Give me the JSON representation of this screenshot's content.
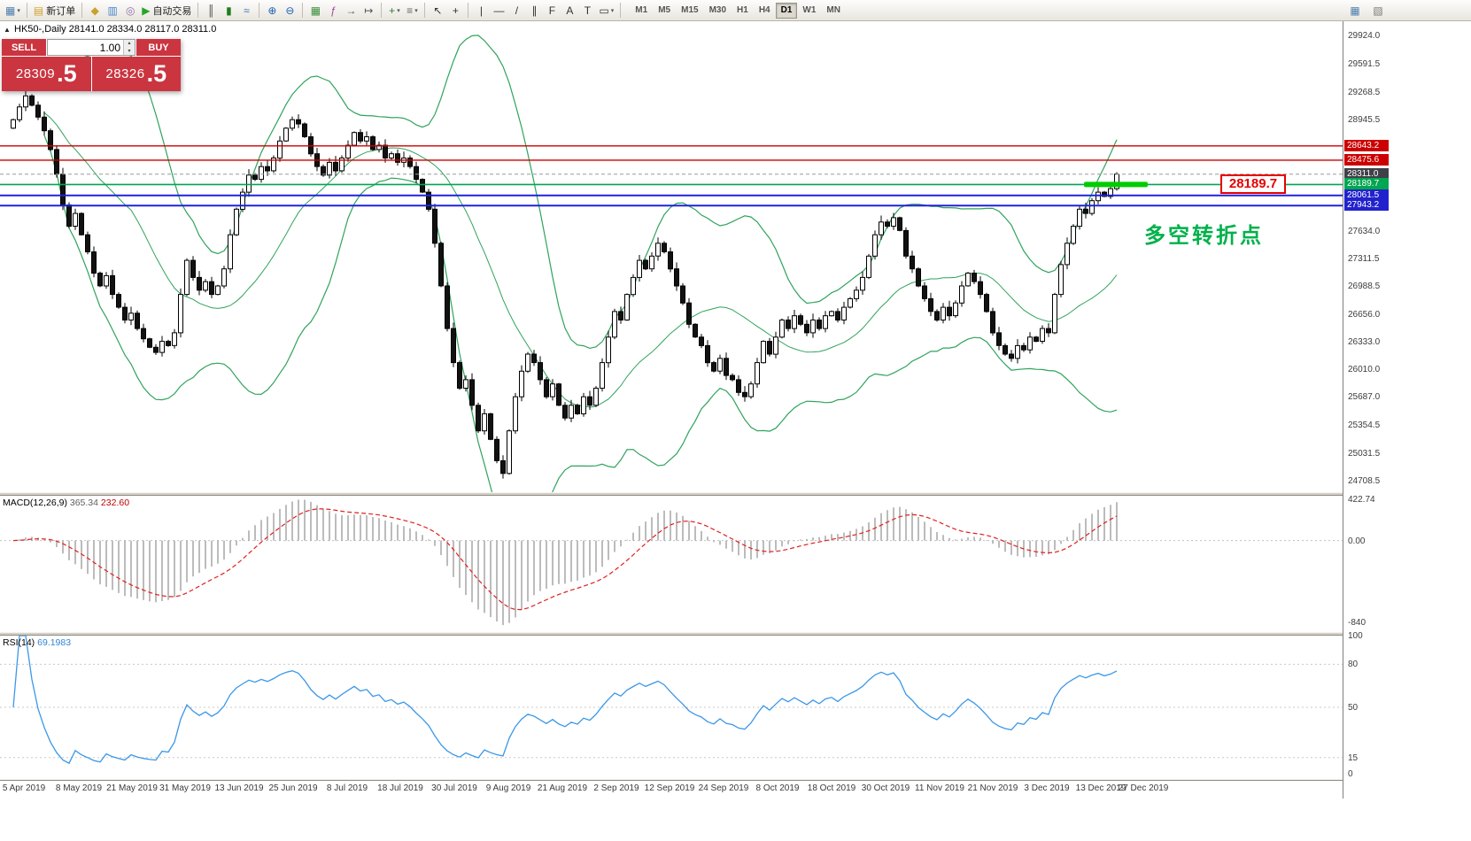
{
  "toolbar": {
    "groups": [
      {
        "items": [
          {
            "kind": "icon",
            "name": "charts-menu-icon",
            "glyph": "▦",
            "color": "#4f7fae",
            "arrow": true
          }
        ]
      },
      {
        "items": [
          {
            "kind": "labeled",
            "name": "new-order-button",
            "label": "新订单",
            "glyph": "▤",
            "color": "#d0a22c"
          }
        ]
      },
      {
        "items": [
          {
            "kind": "icon",
            "name": "metaeditor-icon",
            "glyph": "◆",
            "color": "#c9a227"
          },
          {
            "kind": "icon",
            "name": "market-watch-icon",
            "glyph": "▥",
            "color": "#4a86c8"
          },
          {
            "kind": "icon",
            "name": "navigator-icon",
            "glyph": "◎",
            "color": "#8a6fae"
          },
          {
            "kind": "labeled",
            "name": "autotrading-button",
            "label": "自动交易",
            "glyph": "▶",
            "color": "#28a428"
          }
        ]
      },
      {
        "items": [
          {
            "kind": "icon",
            "name": "bar-chart-icon",
            "glyph": "║",
            "color": "#444444"
          },
          {
            "kind": "icon",
            "name": "candlestick-chart-icon",
            "glyph": "▮",
            "color": "#1c7c1c"
          },
          {
            "kind": "icon",
            "name": "line-chart-icon",
            "glyph": "≈",
            "color": "#2e6fb0"
          }
        ]
      },
      {
        "items": [
          {
            "kind": "icon",
            "name": "zoom-in-icon",
            "glyph": "⊕",
            "color": "#1a5fae"
          },
          {
            "kind": "icon",
            "name": "zoom-out-icon",
            "glyph": "⊖",
            "color": "#1a5fae"
          }
        ]
      },
      {
        "items": [
          {
            "kind": "icon",
            "name": "tile-windows-icon",
            "glyph": "▦",
            "color": "#3f8f3f"
          },
          {
            "kind": "icon",
            "name": "indicators-icon",
            "glyph": "ƒ",
            "color": "#a04a9e"
          },
          {
            "kind": "icon",
            "name": "auto-scroll-icon",
            "glyph": "→",
            "color": "#555555"
          },
          {
            "kind": "icon",
            "name": "chart-shift-icon",
            "glyph": "↦",
            "color": "#555555"
          }
        ]
      },
      {
        "items": [
          {
            "kind": "icon",
            "name": "new-chart-icon",
            "glyph": "+",
            "color": "#2f7f2f",
            "arrow": true
          },
          {
            "kind": "icon",
            "name": "profiles-icon",
            "glyph": "≡",
            "color": "#666666",
            "arrow": true
          }
        ]
      },
      {
        "items": [
          {
            "kind": "icon",
            "name": "cursor-icon",
            "glyph": "↖",
            "color": "#333333"
          },
          {
            "kind": "icon",
            "name": "crosshair-icon",
            "glyph": "+",
            "color": "#333333"
          }
        ]
      },
      {
        "items": [
          {
            "kind": "icon",
            "name": "vertical-line-icon",
            "glyph": "|",
            "color": "#333333"
          },
          {
            "kind": "icon",
            "name": "horizontal-line-icon",
            "glyph": "—",
            "color": "#333333"
          },
          {
            "kind": "icon",
            "name": "trendline-icon",
            "glyph": "/",
            "color": "#333333"
          },
          {
            "kind": "icon",
            "name": "channel-icon",
            "glyph": "∥",
            "color": "#333333"
          },
          {
            "kind": "icon",
            "name": "fibonacci-icon",
            "glyph": "F",
            "color": "#333333"
          },
          {
            "kind": "icon",
            "name": "text-icon",
            "glyph": "A",
            "color": "#333333"
          },
          {
            "kind": "icon",
            "name": "label-icon",
            "glyph": "T",
            "color": "#333333"
          },
          {
            "kind": "icon",
            "name": "shapes-icon",
            "glyph": "▭",
            "color": "#333333",
            "arrow": true
          }
        ]
      }
    ],
    "timeframes": [
      "M1",
      "M5",
      "M15",
      "M30",
      "H1",
      "H4",
      "D1",
      "W1",
      "MN"
    ],
    "active_timeframe": "D1",
    "right_icons": [
      {
        "name": "arrange-windows-icon",
        "glyph": "▦",
        "color": "#4f7fae"
      },
      {
        "name": "window-list-icon",
        "glyph": "▧",
        "color": "#7a7a7a"
      }
    ]
  },
  "chart": {
    "symbol_period": "HK50-,Daily",
    "ohlc": "28141.0 28334.0 28117.0 28311.0"
  },
  "trade_panel": {
    "sell_label": "SELL",
    "buy_label": "BUY",
    "volume": "1.00",
    "sell_price_main": "28309",
    "sell_price_big": ".5",
    "buy_price_main": "28326",
    "buy_price_big": ".5"
  },
  "annotations": {
    "price_label": "28189.7",
    "cn_text": "多空转折点"
  },
  "price_axis": {
    "ticks": [
      "29924.0",
      "29591.5",
      "29268.5",
      "28945.5",
      "27634.0",
      "27311.5",
      "26988.5",
      "26656.0",
      "26333.0",
      "26010.0",
      "25687.0",
      "25354.5",
      "25031.5",
      "24708.5"
    ],
    "colored_labels": [
      {
        "text": "28643.2",
        "price": 28643.2,
        "bg": "#cc0000"
      },
      {
        "text": "28475.6",
        "price": 28475.6,
        "bg": "#cc0000"
      },
      {
        "text": "28311.0",
        "price": 28311.0,
        "bg": "#404048"
      },
      {
        "text": "28189.7",
        "price": 28189.7,
        "bg": "#00a650"
      },
      {
        "text": "28061.5",
        "price": 28061.5,
        "bg": "#2222cc"
      },
      {
        "text": "27943.2",
        "price": 27943.2,
        "bg": "#2222cc"
      }
    ]
  },
  "macd": {
    "label": "MACD(12,26,9)",
    "main_value": "365.34",
    "signal_value": "232.60",
    "scale": [
      {
        "text": "422.74",
        "value": 422.74
      },
      {
        "text": "0.00",
        "value": 0
      },
      {
        "text": "-840",
        "value": -840
      }
    ]
  },
  "rsi": {
    "label": "RSI(14)",
    "value": "69.1983",
    "scale": [
      {
        "text": "100",
        "value": 100
      },
      {
        "text": "80",
        "value": 80
      },
      {
        "text": "50",
        "value": 50
      },
      {
        "text": "15",
        "value": 15
      },
      {
        "text": "0",
        "value": 0
      }
    ],
    "levels": [
      80,
      50,
      15
    ]
  },
  "date_axis": [
    "5 Apr 2019",
    "8 May 2019",
    "21 May 2019",
    "31 May 2019",
    "13 Jun 2019",
    "25 Jun 2019",
    "8 Jul 2019",
    "18 Jul 2019",
    "30 Jul 2019",
    "9 Aug 2019",
    "21 Aug 2019",
    "2 Sep 2019",
    "12 Sep 2019",
    "24 Sep 2019",
    "8 Oct 2019",
    "18 Oct 2019",
    "30 Oct 2019",
    "11 Nov 2019",
    "21 Nov 2019",
    "3 Dec 2019",
    "13 Dec 2019",
    "27 Dec 2019"
  ],
  "chart_data": {
    "type": "candlestick",
    "symbol": "HK50-",
    "timeframe": "Daily",
    "title": "HK50-,Daily 28141.0 28334.0 28117.0 28311.0",
    "last_ohlc": [
      28141.0,
      28334.0,
      28117.0,
      28311.0
    ],
    "first_open": 28850,
    "price_range": [
      24580,
      30105
    ],
    "closes": [
      28950,
      29100,
      29230,
      29120,
      28980,
      28820,
      28600,
      28310,
      27950,
      27700,
      27850,
      27600,
      27400,
      27150,
      27000,
      27120,
      26900,
      26750,
      26600,
      26680,
      26500,
      26380,
      26280,
      26220,
      26350,
      26300,
      26450,
      26900,
      27300,
      27100,
      26950,
      27050,
      26900,
      27000,
      27200,
      27600,
      27900,
      28100,
      28300,
      28250,
      28400,
      28350,
      28500,
      28700,
      28850,
      28950,
      28900,
      28750,
      28550,
      28400,
      28300,
      28450,
      28350,
      28500,
      28650,
      28800,
      28700,
      28750,
      28600,
      28650,
      28500,
      28550,
      28450,
      28500,
      28400,
      28250,
      28100,
      27900,
      27500,
      27000,
      26500,
      26100,
      25800,
      25900,
      25600,
      25300,
      25500,
      25200,
      24950,
      24800,
      25300,
      25700,
      26000,
      26200,
      26100,
      25900,
      25700,
      25850,
      25600,
      25450,
      25600,
      25500,
      25700,
      25600,
      25800,
      26100,
      26400,
      26700,
      26600,
      26900,
      27100,
      27300,
      27200,
      27350,
      27500,
      27400,
      27200,
      27000,
      26800,
      26550,
      26400,
      26300,
      26100,
      26000,
      26150,
      25950,
      25900,
      25750,
      25700,
      25850,
      26100,
      26350,
      26200,
      26400,
      26600,
      26500,
      26650,
      26550,
      26450,
      26600,
      26500,
      26650,
      26700,
      26600,
      26750,
      26850,
      26950,
      27100,
      27350,
      27600,
      27750,
      27700,
      27800,
      27650,
      27350,
      27200,
      27000,
      26850,
      26700,
      26600,
      26750,
      26650,
      26800,
      27000,
      27150,
      27050,
      26900,
      26700,
      26450,
      26300,
      26200,
      26150,
      26300,
      26250,
      26400,
      26350,
      26500,
      26450,
      26900,
      27250,
      27500,
      27700,
      27900,
      27850,
      28000,
      28100,
      28050,
      28141,
      28311
    ],
    "special_lows": {
      "79": 24740
    },
    "hlines": [
      {
        "price": 28643.2,
        "color": "#cc0000",
        "w": 1.4
      },
      {
        "price": 28475.6,
        "color": "#cc0000",
        "w": 1.4
      },
      {
        "price": 28311.0,
        "color": "#999999",
        "w": 1,
        "dash": "4 3"
      },
      {
        "price": 28189.7,
        "color": "#00a650",
        "w": 1.6
      },
      {
        "price": 28061.5,
        "color": "#2222dd",
        "w": 2
      },
      {
        "price": 27943.2,
        "color": "#2222dd",
        "w": 2
      }
    ],
    "highlight_segment": {
      "price": 28189.7,
      "color": "#00cc00"
    },
    "indicators": [
      "Bollinger Bands",
      "MACD(12,26,9) 365.34 232.60",
      "RSI(14) 69.1983"
    ]
  }
}
